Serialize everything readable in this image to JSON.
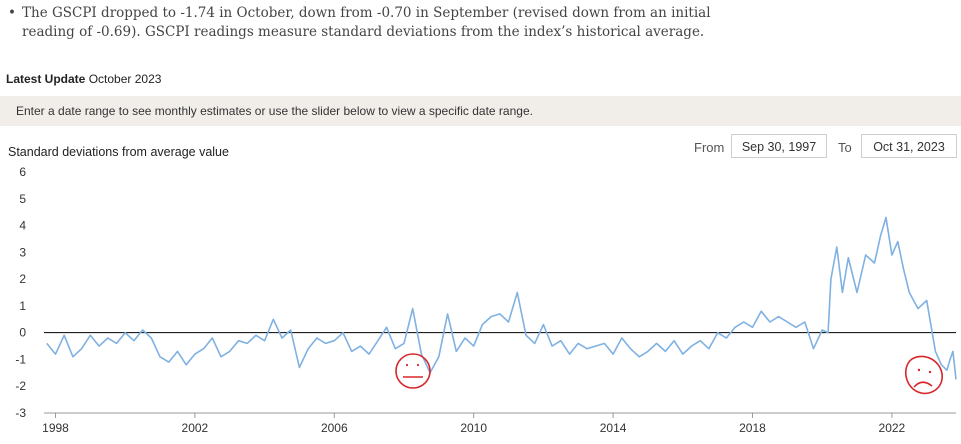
{
  "bullet": {
    "symbol": "•",
    "text": "The GSCPI dropped to -1.74 in October, down from -0.70 in September (revised down from an initial reading of -0.69). GSCPI readings measure standard deviations from the index’s historical average."
  },
  "latest_update": {
    "label": "Latest Update",
    "value": "October 2023"
  },
  "banner_text": "Enter a date range to see monthly estimates or use the slider below to view a specific date range.",
  "range": {
    "from_label": "From",
    "from_value": "Sep 30, 1997",
    "to_label": "To",
    "to_value": "Oct 31, 2023"
  },
  "chart_data": {
    "type": "line",
    "title": "",
    "ylabel": "Standard deviations from average value",
    "xlabel": "",
    "ylim": [
      -3,
      6
    ],
    "xlim": [
      1997.67,
      2023.84
    ],
    "yticks": [
      "6",
      "5",
      "4",
      "3",
      "2",
      "1",
      "0",
      "-1",
      "-2",
      "-3"
    ],
    "xticks": [
      "1998",
      "2002",
      "2006",
      "2010",
      "2014",
      "2018",
      "2022"
    ],
    "zero_line": true,
    "line_color": "#7fb1e2",
    "series": [
      {
        "x": [
          1997.75,
          1998.0,
          1998.25,
          1998.5,
          1998.75,
          1999.0,
          1999.25,
          1999.5,
          1999.75,
          2000.0,
          2000.25,
          2000.5,
          2000.75,
          2001.0,
          2001.25,
          2001.5,
          2001.75,
          2002.0,
          2002.25,
          2002.5,
          2002.75,
          2003.0,
          2003.25,
          2003.5,
          2003.75,
          2004.0,
          2004.25,
          2004.5,
          2004.75,
          2005.0,
          2005.25,
          2005.5,
          2005.75,
          2006.0,
          2006.25,
          2006.5,
          2006.75,
          2007.0,
          2007.25,
          2007.5,
          2007.75,
          2008.0,
          2008.25,
          2008.5,
          2008.75,
          2009.0,
          2009.25,
          2009.5,
          2009.75,
          2010.0,
          2010.25,
          2010.5,
          2010.75,
          2011.0,
          2011.25,
          2011.5,
          2011.75,
          2012.0,
          2012.25,
          2012.5,
          2012.75,
          2013.0,
          2013.25,
          2013.5,
          2013.75,
          2014.0,
          2014.25,
          2014.5,
          2014.75,
          2015.0,
          2015.25,
          2015.5,
          2015.75,
          2016.0,
          2016.25,
          2016.5,
          2016.75,
          2017.0,
          2017.25,
          2017.5,
          2017.75,
          2018.0,
          2018.25,
          2018.5,
          2018.75,
          2019.0,
          2019.25,
          2019.5,
          2019.75,
          2020.0,
          2020.17,
          2020.25,
          2020.42,
          2020.58,
          2020.75,
          2021.0,
          2021.25,
          2021.5,
          2021.67,
          2021.83,
          2022.0,
          2022.17,
          2022.33,
          2022.5,
          2022.75,
          2023.0,
          2023.25,
          2023.42,
          2023.58,
          2023.67,
          2023.75,
          2023.84
        ],
        "y": [
          -0.4,
          -0.8,
          -0.1,
          -0.9,
          -0.6,
          -0.1,
          -0.5,
          -0.2,
          -0.4,
          0.0,
          -0.3,
          0.1,
          -0.2,
          -0.9,
          -1.1,
          -0.7,
          -1.2,
          -0.8,
          -0.6,
          -0.2,
          -0.9,
          -0.7,
          -0.3,
          -0.4,
          -0.1,
          -0.3,
          0.5,
          -0.2,
          0.1,
          -1.3,
          -0.6,
          -0.2,
          -0.4,
          -0.3,
          0.0,
          -0.7,
          -0.5,
          -0.8,
          -0.3,
          0.2,
          -0.6,
          -0.4,
          0.9,
          -0.8,
          -1.5,
          -0.9,
          0.7,
          -0.7,
          -0.2,
          -0.5,
          0.3,
          0.6,
          0.7,
          0.4,
          1.5,
          -0.1,
          -0.4,
          0.3,
          -0.5,
          -0.3,
          -0.8,
          -0.4,
          -0.6,
          -0.5,
          -0.4,
          -0.8,
          -0.2,
          -0.6,
          -0.9,
          -0.7,
          -0.4,
          -0.7,
          -0.3,
          -0.8,
          -0.5,
          -0.3,
          -0.6,
          0.0,
          -0.2,
          0.2,
          0.4,
          0.2,
          0.8,
          0.4,
          0.6,
          0.4,
          0.2,
          0.4,
          -0.6,
          0.1,
          0.0,
          2.0,
          3.2,
          1.5,
          2.8,
          1.5,
          2.9,
          2.6,
          3.6,
          4.3,
          2.9,
          3.4,
          2.4,
          1.5,
          0.9,
          1.2,
          -0.7,
          -1.2,
          -1.4,
          -1.0,
          -0.7,
          -1.74
        ]
      }
    ]
  }
}
